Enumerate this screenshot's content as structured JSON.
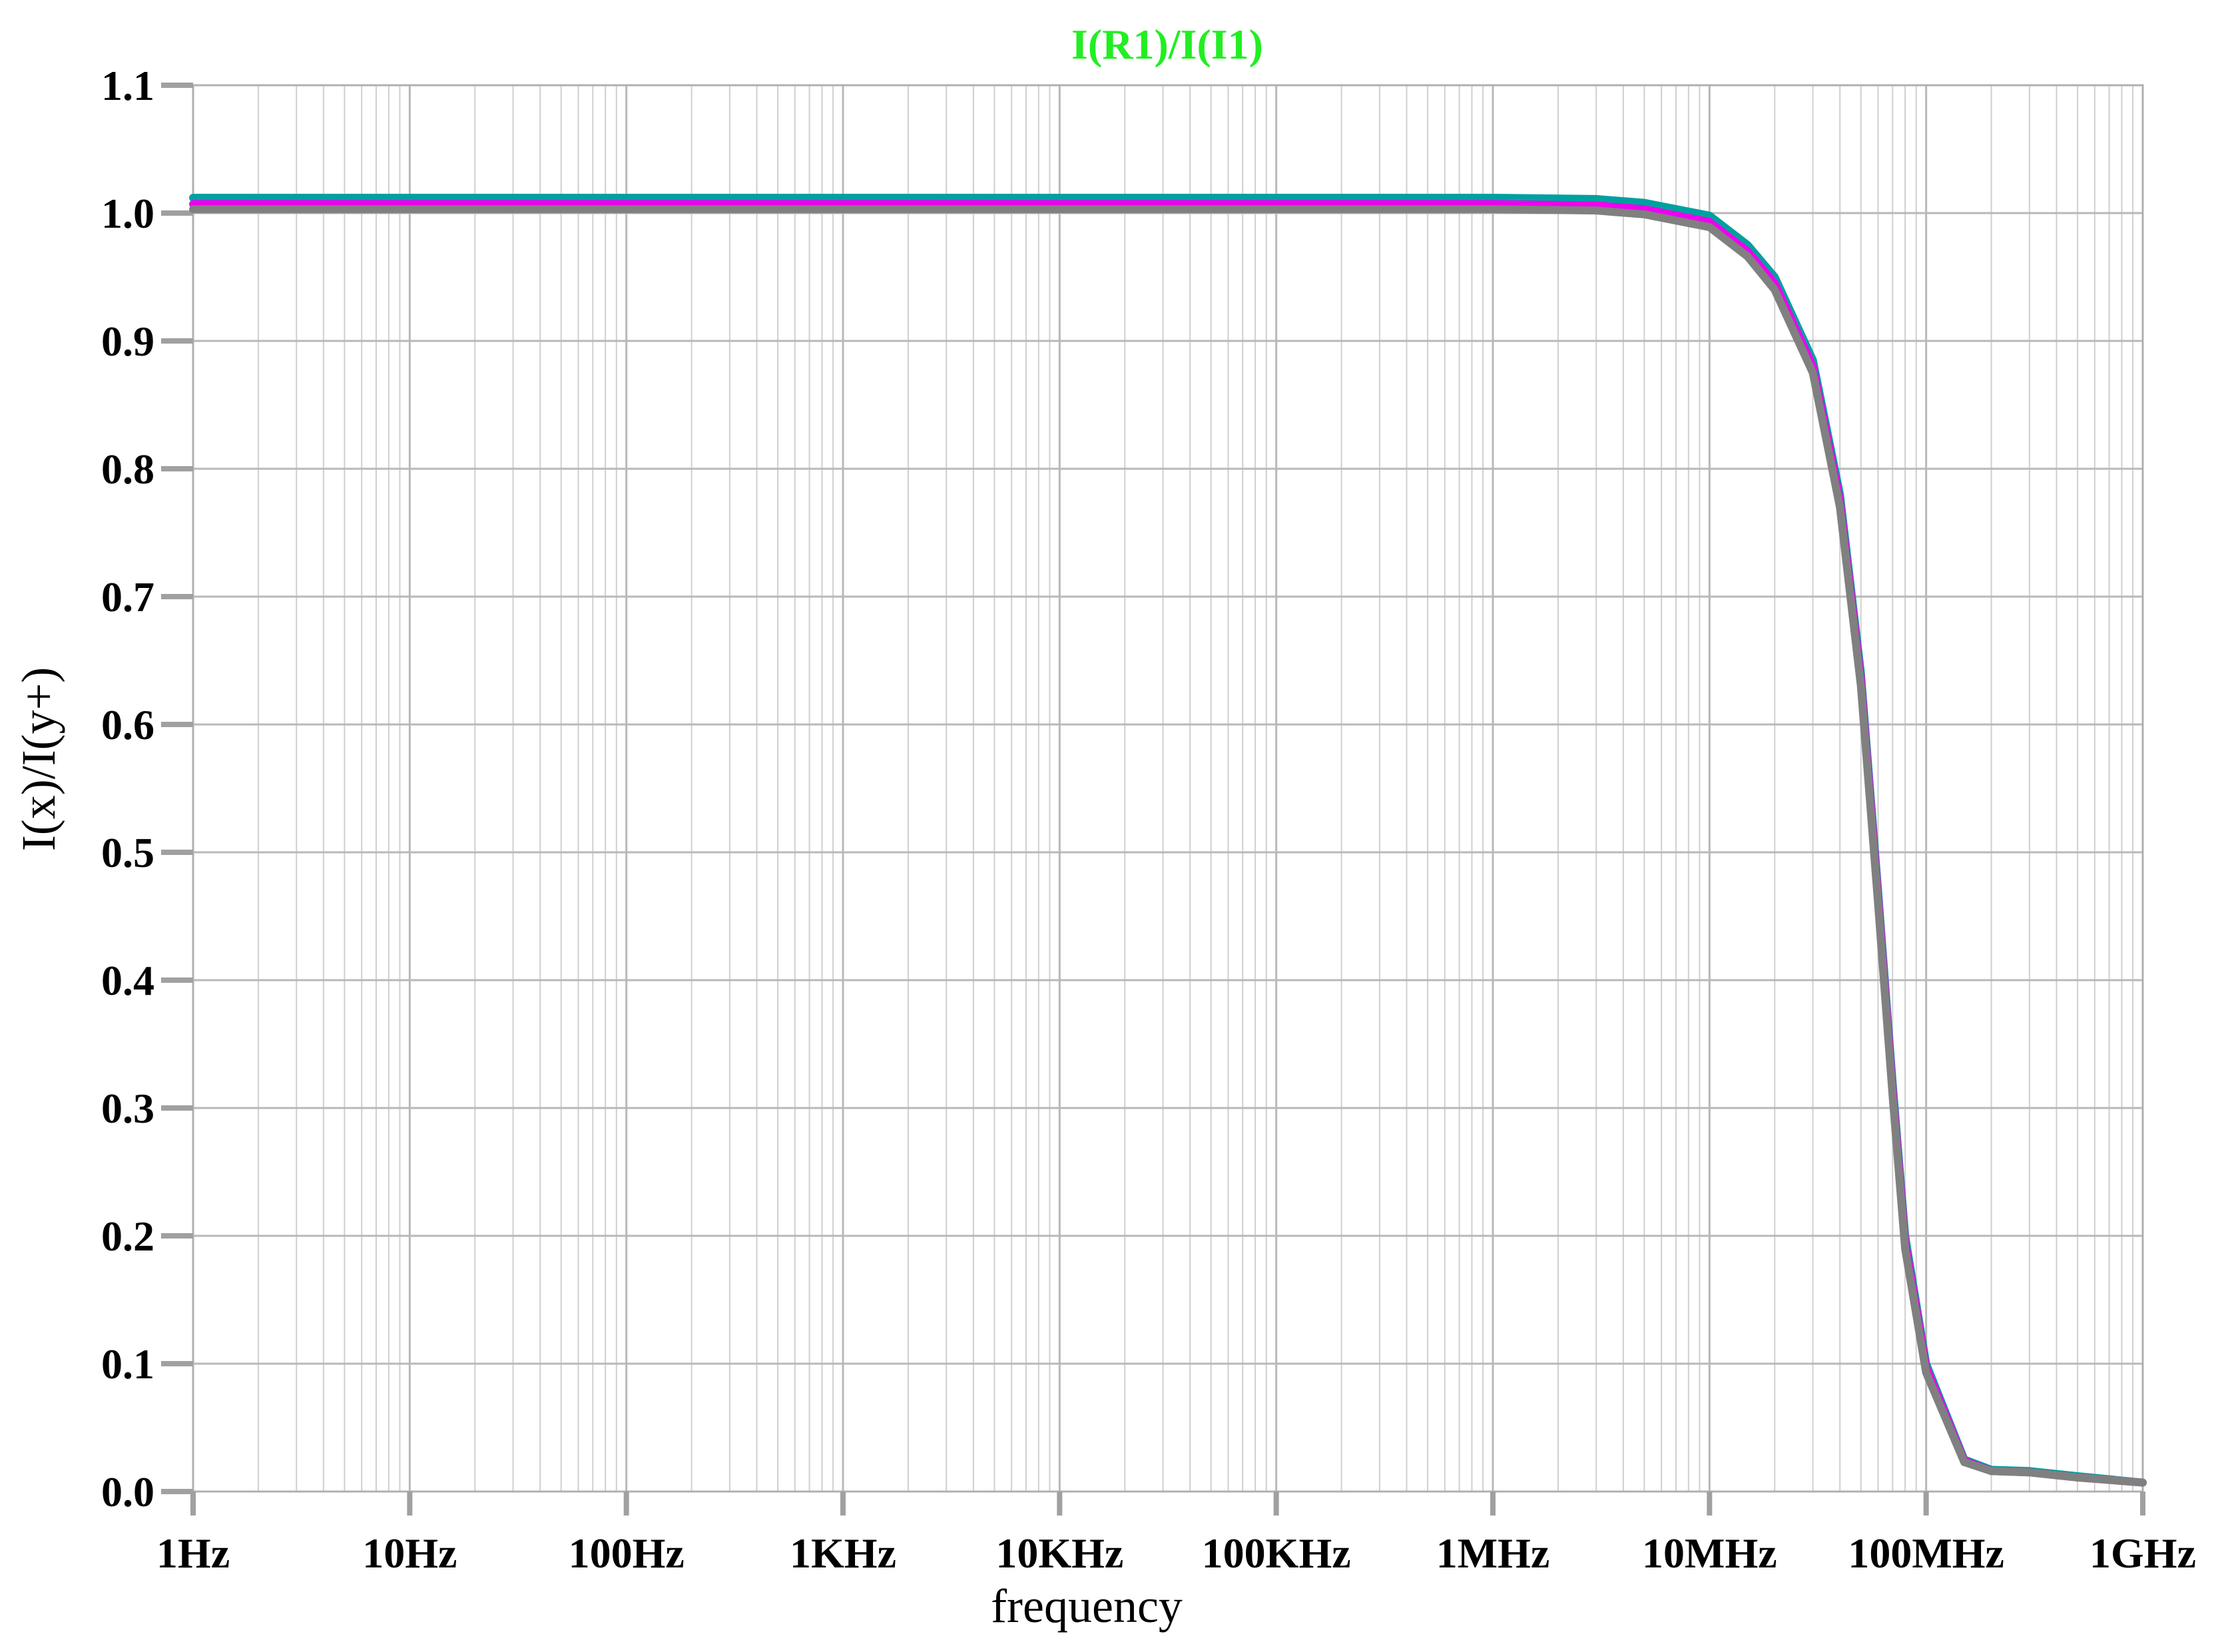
{
  "chart_data": {
    "type": "line",
    "title": "I(R1)/I(I1)",
    "title_color": "#22ee22",
    "xlabel": "frequency",
    "ylabel": "I(x)/I(y+)",
    "x_scale": "log",
    "xlim": [
      1,
      1000000000
    ],
    "ylim": [
      0.0,
      1.1
    ],
    "grid": true,
    "x_ticks": [
      1,
      10,
      100,
      1000,
      10000,
      100000,
      1000000,
      10000000,
      100000000,
      1000000000
    ],
    "x_tick_labels": [
      "1Hz",
      "10Hz",
      "100Hz",
      "1KHz",
      "10KHz",
      "100KHz",
      "1MHz",
      "10MHz",
      "100MHz",
      "1GHz"
    ],
    "y_ticks": [
      0.0,
      0.1,
      0.2,
      0.3,
      0.4,
      0.5,
      0.6,
      0.7,
      0.8,
      0.9,
      1.0,
      1.1
    ],
    "y_tick_labels": [
      "0.0",
      "0.1",
      "0.2",
      "0.3",
      "0.4",
      "0.5",
      "0.6",
      "0.7",
      "0.8",
      "0.9",
      "1.0",
      "1.1"
    ],
    "series": [
      {
        "color": "#00a0a0",
        "x": [
          1,
          10,
          100,
          1000,
          10000,
          100000,
          1000000,
          3000000,
          5000000,
          10000000,
          15000000,
          20000000,
          30000000,
          40000000,
          50000000,
          60000000,
          70000000,
          80000000,
          100000000,
          150000000,
          200000000,
          300000000,
          500000000,
          1000000000
        ],
        "y": [
          1.012,
          1.012,
          1.012,
          1.012,
          1.012,
          1.012,
          1.012,
          1.011,
          1.008,
          0.998,
          0.975,
          0.95,
          0.885,
          0.78,
          0.64,
          0.47,
          0.32,
          0.2,
          0.1,
          0.025,
          0.017,
          0.016,
          0.012,
          0.007
        ]
      },
      {
        "color": "#ee00ee",
        "x": [
          1,
          10,
          100,
          1000,
          10000,
          100000,
          1000000,
          3000000,
          5000000,
          10000000,
          15000000,
          20000000,
          30000000,
          40000000,
          50000000,
          60000000,
          70000000,
          80000000,
          100000000,
          150000000,
          200000000,
          300000000,
          500000000,
          1000000000
        ],
        "y": [
          1.007,
          1.007,
          1.007,
          1.007,
          1.007,
          1.007,
          1.007,
          1.006,
          1.003,
          0.993,
          0.97,
          0.945,
          0.88,
          0.775,
          0.635,
          0.465,
          0.315,
          0.195,
          0.097,
          0.024,
          0.016,
          0.015,
          0.011,
          0.007
        ]
      },
      {
        "color": "#808080",
        "x": [
          1,
          10,
          100,
          1000,
          10000,
          100000,
          1000000,
          3000000,
          5000000,
          10000000,
          15000000,
          20000000,
          30000000,
          40000000,
          50000000,
          60000000,
          70000000,
          80000000,
          100000000,
          150000000,
          200000000,
          300000000,
          500000000,
          1000000000
        ],
        "y": [
          1.003,
          1.003,
          1.003,
          1.003,
          1.003,
          1.003,
          1.003,
          1.002,
          0.999,
          0.989,
          0.966,
          0.94,
          0.875,
          0.77,
          0.63,
          0.46,
          0.31,
          0.19,
          0.093,
          0.023,
          0.016,
          0.015,
          0.011,
          0.007
        ]
      }
    ]
  }
}
